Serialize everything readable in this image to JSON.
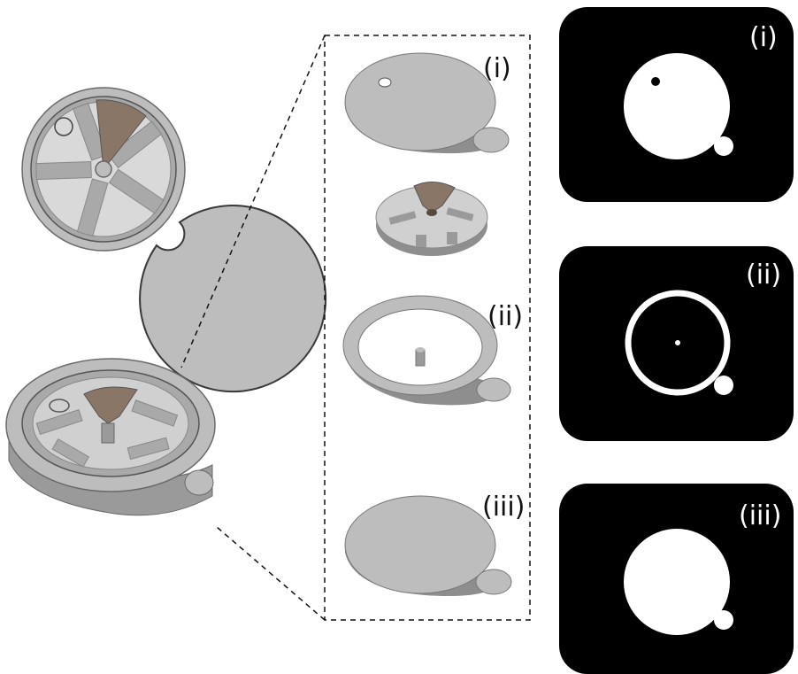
{
  "exploded_view": {
    "labels": [
      {
        "id": "top-plate",
        "text": "(i)"
      },
      {
        "id": "ring",
        "text": "(ii)"
      },
      {
        "id": "bottom-plate",
        "text": "(iii)"
      }
    ]
  },
  "masks": [
    {
      "id": "mask-i",
      "text": "(i)"
    },
    {
      "id": "mask-ii",
      "text": "(ii)"
    },
    {
      "id": "mask-iii",
      "text": "(iii)"
    }
  ],
  "colors": {
    "part_gray": "#bdbdbd",
    "part_side": "#8e8e8e",
    "insert_gray": "#d9d9d9",
    "rotor_brown": "#8a7666",
    "outline": "#3a3a3a",
    "mask_bg": "#000000",
    "mask_fg": "#ffffff"
  }
}
